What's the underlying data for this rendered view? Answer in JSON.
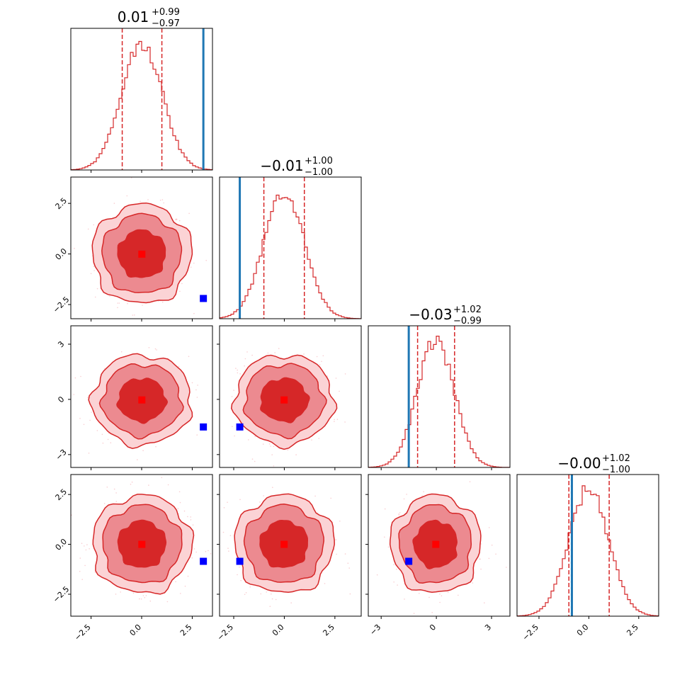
{
  "chart_data": {
    "type": "corner",
    "n_params": 4,
    "colors": {
      "samples": "#d62728",
      "truth_line": "#1f77b4",
      "median_marker": "#ff0000",
      "truth_marker": "#0000ff"
    },
    "titles": [
      {
        "median": "0.01",
        "plus": "+0.99",
        "minus": "−0.97"
      },
      {
        "median": "−0.01",
        "plus": "+1.00",
        "minus": "−1.00"
      },
      {
        "median": "−0.03",
        "plus": "+1.02",
        "minus": "−0.99"
      },
      {
        "median": "−0.00",
        "plus": "+1.02",
        "minus": "−1.00"
      }
    ],
    "ranges": [
      [
        -3.5,
        3.5
      ],
      [
        -3.2,
        3.8
      ],
      [
        -3.7,
        4.0
      ],
      [
        -3.6,
        3.5
      ]
    ],
    "ticks": [
      {
        "values": [
          -2.5,
          0.0,
          2.5
        ],
        "labels": [
          "−2.5",
          "0.0",
          "2.5"
        ]
      },
      {
        "values": [
          -2.5,
          0.0,
          2.5
        ],
        "labels": [
          "−2.5",
          "0.0",
          "2.5"
        ]
      },
      {
        "values": [
          -3,
          0,
          3
        ],
        "labels": [
          "−3",
          "0",
          "3"
        ]
      },
      {
        "values": [
          -2.5,
          0.0,
          2.5
        ],
        "labels": [
          "−2.5",
          "0.0",
          "2.5"
        ]
      }
    ],
    "medians": [
      0.01,
      -0.01,
      -0.03,
      -0.0
    ],
    "quantiles": [
      [
        -0.96,
        1.0
      ],
      [
        -1.01,
        0.99
      ],
      [
        -1.02,
        0.99
      ],
      [
        -1.0,
        1.02
      ]
    ],
    "truths": [
      3.05,
      -2.2,
      -1.5,
      -0.85
    ],
    "contour_levels": [
      0.5,
      0.86,
      0.95
    ],
    "sigma": 1.0
  }
}
